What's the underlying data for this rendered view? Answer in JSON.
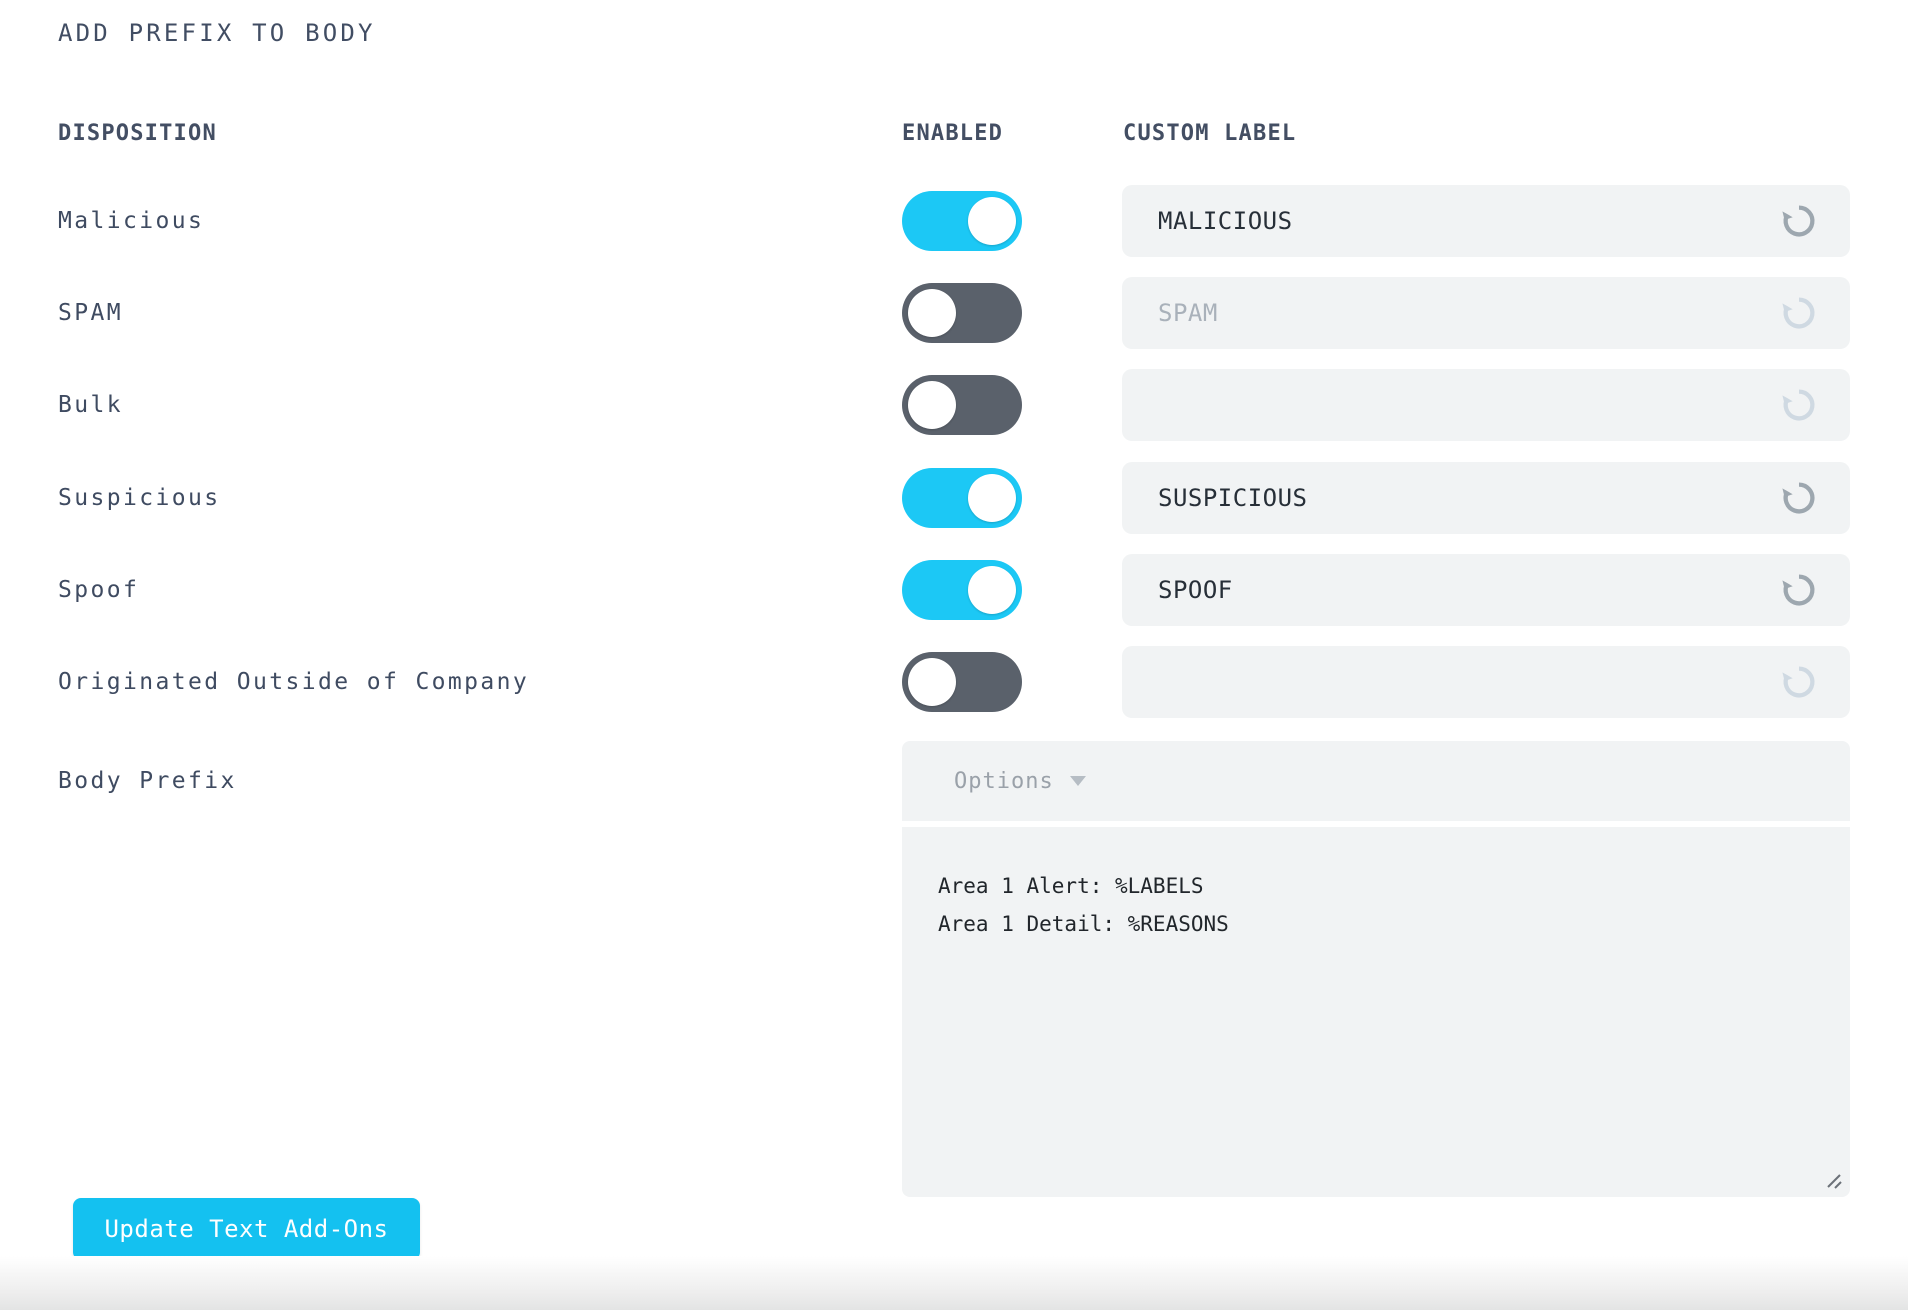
{
  "page": {
    "title": "ADD PREFIX TO BODY"
  },
  "table": {
    "headers": {
      "disposition": "DISPOSITION",
      "enabled": "ENABLED",
      "custom_label": "CUSTOM LABEL"
    },
    "rows": [
      {
        "label": "Malicious",
        "enabled": true,
        "value": "MALICIOUS",
        "placeholder": ""
      },
      {
        "label": "SPAM",
        "enabled": false,
        "value": "",
        "placeholder": "SPAM"
      },
      {
        "label": "Bulk",
        "enabled": false,
        "value": "",
        "placeholder": ""
      },
      {
        "label": "Suspicious",
        "enabled": true,
        "value": "SUSPICIOUS",
        "placeholder": ""
      },
      {
        "label": "Spoof",
        "enabled": true,
        "value": "SPOOF",
        "placeholder": ""
      },
      {
        "label": "Originated Outside of Company",
        "enabled": false,
        "value": "",
        "placeholder": ""
      }
    ]
  },
  "body_prefix": {
    "label": "Body Prefix",
    "options_label": "Options",
    "textarea_value": "Area 1 Alert: %LABELS\nArea 1 Detail: %REASONS"
  },
  "footer": {
    "update_button_label": "Update Text Add-Ons"
  },
  "icons": {
    "reset": "reset-undo-circular-arrow-icon",
    "caret": "chevron-down-icon",
    "resize": "textarea-resize-handle-icon"
  },
  "colors": {
    "accent_cyan": "#14c1f0",
    "toggle_on": "#1cc8f5",
    "toggle_off": "#5a616b",
    "field_background": "#f1f3f4",
    "label_text": "#3f4b61",
    "placeholder_text": "#a9b1ba",
    "reset_icon": "#9da7af",
    "reset_icon_disabled": "#cfd9e2"
  }
}
